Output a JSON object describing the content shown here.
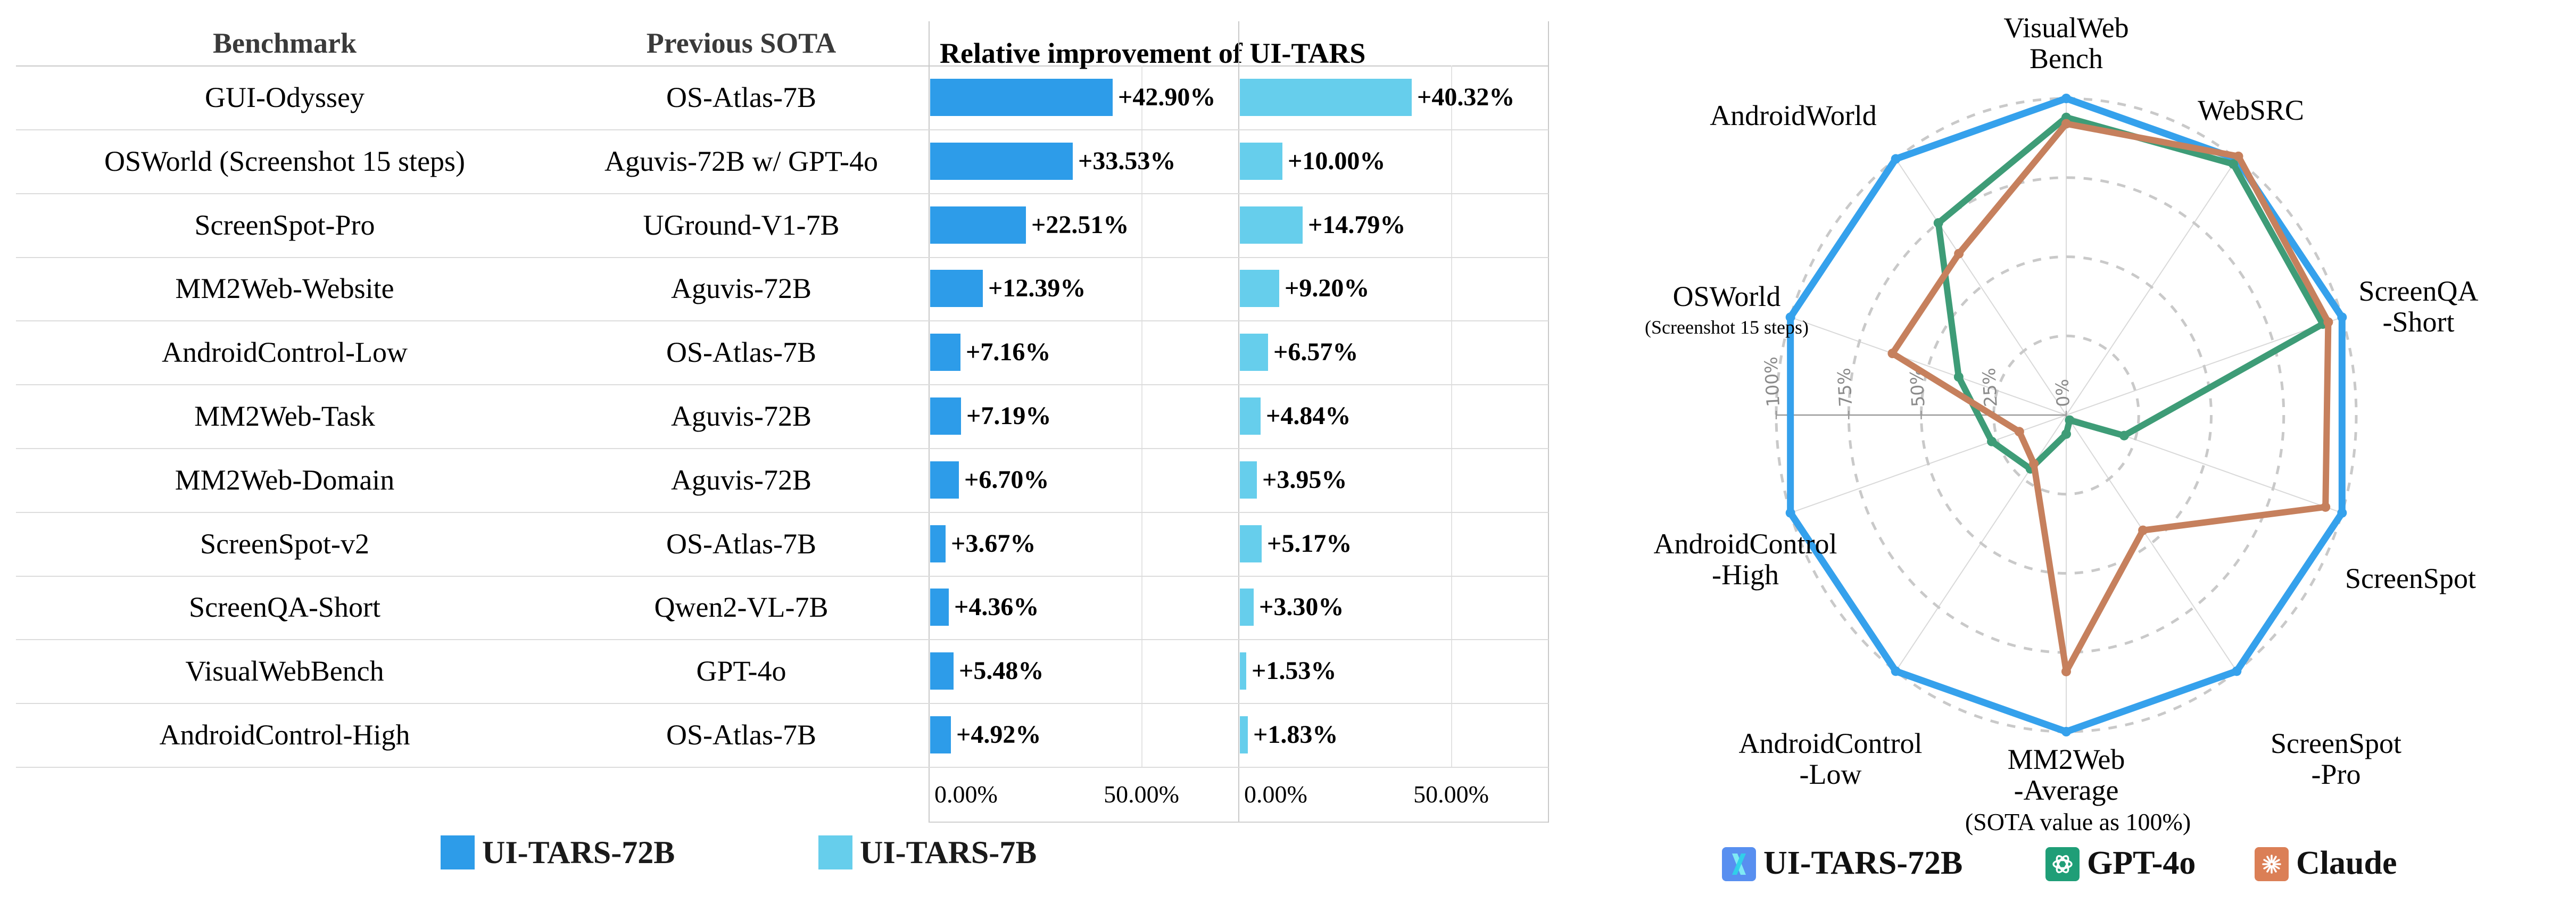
{
  "table": {
    "headers": {
      "benchmark": "Benchmark",
      "previous_sota": "Previous SOTA",
      "improvement": "Relative improvement of UI-TARS"
    },
    "axis": {
      "zero_label": "0.00%",
      "fifty_label": "50.00%",
      "max_percent": 72.5,
      "gridline_percent": 50
    },
    "rows": [
      {
        "benchmark": "GUI-Odyssey",
        "previous_sota": "OS-Atlas-7B",
        "uitars_72b": 42.9,
        "uitars_72b_label": "+42.90%",
        "uitars_7b": 40.32,
        "uitars_7b_label": "+40.32%"
      },
      {
        "benchmark": "OSWorld (Screenshot 15 steps)",
        "previous_sota": "Aguvis-72B w/ GPT-4o",
        "uitars_72b": 33.53,
        "uitars_72b_label": "+33.53%",
        "uitars_7b": 10.0,
        "uitars_7b_label": "+10.00%"
      },
      {
        "benchmark": "ScreenSpot-Pro",
        "previous_sota": "UGround-V1-7B",
        "uitars_72b": 22.51,
        "uitars_72b_label": "+22.51%",
        "uitars_7b": 14.79,
        "uitars_7b_label": "+14.79%"
      },
      {
        "benchmark": "MM2Web-Website",
        "previous_sota": "Aguvis-72B",
        "uitars_72b": 12.39,
        "uitars_72b_label": "+12.39%",
        "uitars_7b": 9.2,
        "uitars_7b_label": "+9.20%"
      },
      {
        "benchmark": "AndroidControl-Low",
        "previous_sota": "OS-Atlas-7B",
        "uitars_72b": 7.16,
        "uitars_72b_label": "+7.16%",
        "uitars_7b": 6.57,
        "uitars_7b_label": "+6.57%"
      },
      {
        "benchmark": "MM2Web-Task",
        "previous_sota": "Aguvis-72B",
        "uitars_72b": 7.19,
        "uitars_72b_label": "+7.19%",
        "uitars_7b": 4.84,
        "uitars_7b_label": "+4.84%"
      },
      {
        "benchmark": "MM2Web-Domain",
        "previous_sota": "Aguvis-72B",
        "uitars_72b": 6.7,
        "uitars_72b_label": "+6.70%",
        "uitars_7b": 3.95,
        "uitars_7b_label": "+3.95%"
      },
      {
        "benchmark": "ScreenSpot-v2",
        "previous_sota": "OS-Atlas-7B",
        "uitars_72b": 3.67,
        "uitars_72b_label": "+3.67%",
        "uitars_7b": 5.17,
        "uitars_7b_label": "+5.17%"
      },
      {
        "benchmark": "ScreenQA-Short",
        "previous_sota": "Qwen2-VL-7B",
        "uitars_72b": 4.36,
        "uitars_72b_label": "+4.36%",
        "uitars_7b": 3.3,
        "uitars_7b_label": "+3.30%"
      },
      {
        "benchmark": "VisualWebBench",
        "previous_sota": "GPT-4o",
        "uitars_72b": 5.48,
        "uitars_72b_label": "+5.48%",
        "uitars_7b": 1.53,
        "uitars_7b_label": "+1.53%"
      },
      {
        "benchmark": "AndroidControl-High",
        "previous_sota": "OS-Atlas-7B",
        "uitars_72b": 4.92,
        "uitars_72b_label": "+4.92%",
        "uitars_7b": 1.83,
        "uitars_7b_label": "+1.83%"
      }
    ],
    "legend": [
      {
        "label": "UI-TARS-72B",
        "color": "#2D9CE9"
      },
      {
        "label": "UI-TARS-7B",
        "color": "#66CEEC"
      }
    ]
  },
  "chart_data": {
    "type": "radar",
    "caption": "(SOTA value as 100%)",
    "radial_ticks": [
      "100%",
      "75%",
      "50%",
      "25%",
      "0%"
    ],
    "radial_range": [
      0,
      100
    ],
    "grid": "dashed-rings",
    "legend_position": "bottom",
    "categories": [
      {
        "name": "VisualWebBench",
        "label_lines": [
          "VisualWeb",
          "Bench"
        ]
      },
      {
        "name": "WebSRC",
        "label_lines": [
          "WebSRC"
        ]
      },
      {
        "name": "ScreenQA-Short",
        "label_lines": [
          "ScreenQA",
          "-Short"
        ]
      },
      {
        "name": "ScreenSpot",
        "label_lines": [
          "ScreenSpot"
        ]
      },
      {
        "name": "ScreenSpot-Pro",
        "label_lines": [
          "ScreenSpot",
          "-Pro"
        ]
      },
      {
        "name": "MM2Web-Average",
        "label_lines": [
          "MM2Web",
          "-Average"
        ]
      },
      {
        "name": "AndroidControl-Low",
        "label_lines": [
          "AndroidControl",
          "-Low"
        ]
      },
      {
        "name": "AndroidControl-High",
        "label_lines": [
          "AndroidControl",
          "-High"
        ]
      },
      {
        "name": "OSWorld (Screenshot 15 steps)",
        "label_lines": [
          "OSWorld"
        ],
        "sublabel": "(Screenshot 15 steps)"
      },
      {
        "name": "AndroidWorld",
        "label_lines": [
          "AndroidWorld"
        ]
      }
    ],
    "series": [
      {
        "name": "UI-TARS-72B",
        "color": "#35A1EC",
        "swatch": "#588FF0",
        "icon": "ui-tars-logo",
        "values": [
          100,
          100,
          100,
          100,
          100,
          100,
          100,
          100,
          100,
          100
        ]
      },
      {
        "name": "GPT-4o",
        "color": "#3E9C77",
        "swatch": "#1F9E77",
        "icon": "openai-logo",
        "values": [
          94,
          98,
          93,
          21,
          2,
          6,
          21,
          27,
          39,
          75
        ]
      },
      {
        "name": "Claude",
        "color": "#C6805D",
        "swatch": "#DB7F56",
        "icon": "claude-logo",
        "values": [
          92,
          101,
          95,
          94,
          45,
          81,
          19,
          17,
          63,
          63
        ]
      }
    ]
  }
}
